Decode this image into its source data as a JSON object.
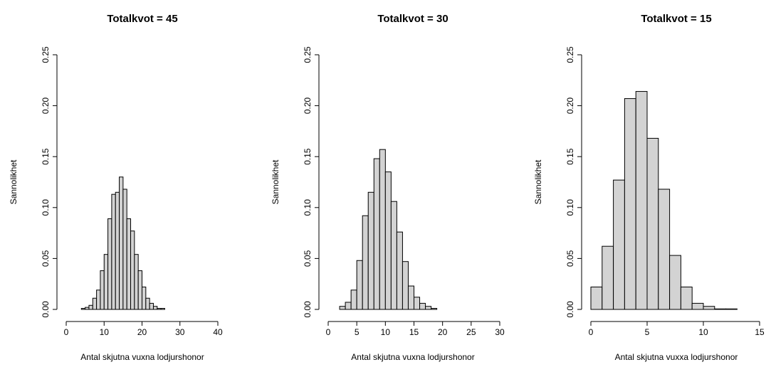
{
  "chart_data": [
    {
      "type": "histogram",
      "title": "Totalkvot = 45",
      "xlabel": "Antal skjutna vuxna lodjurshonor",
      "ylabel": "Sannolikhet",
      "bins": [
        4,
        5,
        6,
        7,
        8,
        9,
        10,
        11,
        12,
        13,
        14,
        15,
        16,
        17,
        18,
        19,
        20,
        21,
        22,
        23,
        24,
        25,
        26
      ],
      "values": [
        0.001,
        0.002,
        0.004,
        0.011,
        0.019,
        0.038,
        0.054,
        0.089,
        0.113,
        0.115,
        0.13,
        0.118,
        0.089,
        0.077,
        0.054,
        0.038,
        0.022,
        0.011,
        0.006,
        0.003,
        0.001,
        0.001
      ],
      "color": "#d3d3d3",
      "xlim": [
        0,
        40
      ],
      "xticks": [
        0,
        10,
        20,
        30,
        40
      ],
      "ylim": [
        0,
        0.25
      ],
      "yticks": [
        {
          "value": 0,
          "label": "0.00"
        },
        {
          "value": 0.05,
          "label": "0.05"
        },
        {
          "value": 0.1,
          "label": "0.10"
        },
        {
          "value": 0.15,
          "label": "0.15"
        },
        {
          "value": 0.2,
          "label": "0.20"
        },
        {
          "value": 0.25,
          "label": "0.25"
        }
      ]
    },
    {
      "type": "histogram",
      "title": "Totalkvot = 30",
      "xlabel": "Antal skjutna vuxna lodjurshonor",
      "ylabel": "Sannolikhet",
      "bins": [
        2,
        3,
        4,
        5,
        6,
        7,
        8,
        9,
        10,
        11,
        12,
        13,
        14,
        15,
        16,
        17,
        18,
        19
      ],
      "values": [
        0.003,
        0.007,
        0.019,
        0.048,
        0.092,
        0.115,
        0.148,
        0.157,
        0.135,
        0.106,
        0.076,
        0.047,
        0.023,
        0.012,
        0.006,
        0.003,
        0.001
      ],
      "color": "#d3d3d3",
      "xlim": [
        0,
        30
      ],
      "xticks": [
        0,
        5,
        10,
        15,
        20,
        25,
        30
      ],
      "ylim": [
        0,
        0.25
      ],
      "yticks": [
        {
          "value": 0,
          "label": "0.00"
        },
        {
          "value": 0.05,
          "label": "0.05"
        },
        {
          "value": 0.1,
          "label": "0.10"
        },
        {
          "value": 0.15,
          "label": "0.15"
        },
        {
          "value": 0.2,
          "label": "0.20"
        },
        {
          "value": 0.25,
          "label": "0.25"
        }
      ]
    },
    {
      "type": "histogram",
      "title": "Totalkvot = 15",
      "xlabel": "Antal skjutna vuxxa lodjurshonor",
      "ylabel": "Sannolikhet",
      "bins": [
        0,
        1,
        2,
        3,
        4,
        5,
        6,
        7,
        8,
        9,
        10,
        11,
        12,
        13
      ],
      "values": [
        0.022,
        0.062,
        0.127,
        0.207,
        0.214,
        0.168,
        0.118,
        0.053,
        0.022,
        0.006,
        0.003,
        0.0005,
        0.0005
      ],
      "color": "#d3d3d3",
      "xlim": [
        0,
        15
      ],
      "xticks": [
        0,
        5,
        10,
        15
      ],
      "ylim": [
        0,
        0.25
      ],
      "yticks": [
        {
          "value": 0,
          "label": "0.00"
        },
        {
          "value": 0.05,
          "label": "0.05"
        },
        {
          "value": 0.1,
          "label": "0.10"
        },
        {
          "value": 0.15,
          "label": "0.15"
        },
        {
          "value": 0.2,
          "label": "0.20"
        },
        {
          "value": 0.25,
          "label": "0.25"
        }
      ]
    }
  ]
}
